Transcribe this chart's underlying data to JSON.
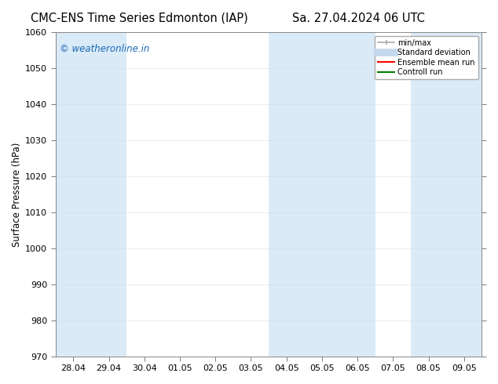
{
  "title_left": "CMC-ENS Time Series Edmonton (IAP)",
  "title_right": "Sa. 27.04.2024 06 UTC",
  "ylabel": "Surface Pressure (hPa)",
  "ylim": [
    970,
    1060
  ],
  "yticks": [
    970,
    980,
    990,
    1000,
    1010,
    1020,
    1030,
    1040,
    1050,
    1060
  ],
  "xtick_labels": [
    "28.04",
    "29.04",
    "30.04",
    "01.05",
    "02.05",
    "03.05",
    "04.05",
    "05.05",
    "06.05",
    "07.05",
    "08.05",
    "09.05"
  ],
  "band_color": "#daeaf7",
  "background_color": "#ffffff",
  "plot_bg_color": "#ffffff",
  "watermark": "© weatheronline.in",
  "watermark_color": "#1a6ab5",
  "legend_items": [
    {
      "label": "min/max",
      "color": "#aaaaaa",
      "lw": 1.2
    },
    {
      "label": "Standard deviation",
      "color": "#c5d9ee",
      "lw": 7
    },
    {
      "label": "Ensemble mean run",
      "color": "#ff0000",
      "lw": 1.5
    },
    {
      "label": "Controll run",
      "color": "#008000",
      "lw": 1.5
    }
  ],
  "title_fontsize": 10.5,
  "tick_fontsize": 8,
  "ylabel_fontsize": 8.5,
  "watermark_fontsize": 8.5,
  "shaded_day_indices": [
    0,
    2,
    4,
    6,
    8,
    10
  ]
}
